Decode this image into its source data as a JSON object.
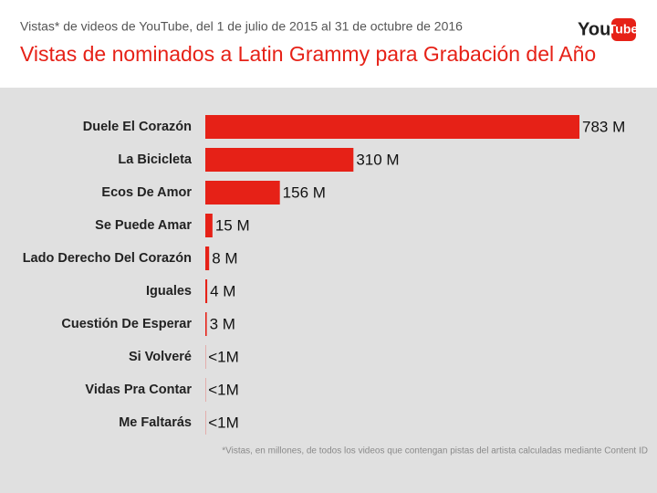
{
  "chart_data": {
    "type": "bar",
    "orientation": "horizontal",
    "subtitle": "Vistas* de videos de YouTube, del 1 de julio de 2015 al 31 de octubre de 2016",
    "title": "Vistas de nominados a Latin Grammy para Grabación del Año",
    "logo_you": "You",
    "logo_tube": "Tube",
    "categories": [
      "Duele El Corazón",
      "La Bicicleta",
      "Ecos De Amor",
      "Se Puede Amar",
      "Lado Derecho Del Corazón",
      "Iguales",
      "Cuestión De Esperar",
      "Si Volveré",
      "Vidas Pra Contar",
      "Me Faltarás"
    ],
    "values": [
      783,
      310,
      156,
      15,
      8,
      4,
      3,
      0.5,
      0.5,
      0.5
    ],
    "value_labels": [
      "783 M",
      "310 M",
      "156 M",
      "15 M",
      "8 M",
      "4 M",
      "3 M",
      "<1M",
      "<1M",
      "<1M"
    ],
    "color": "#e62117",
    "footnote": "*Vistas, en millones, de todos los videos que contengan pistas del artista calculadas mediante Content ID"
  }
}
